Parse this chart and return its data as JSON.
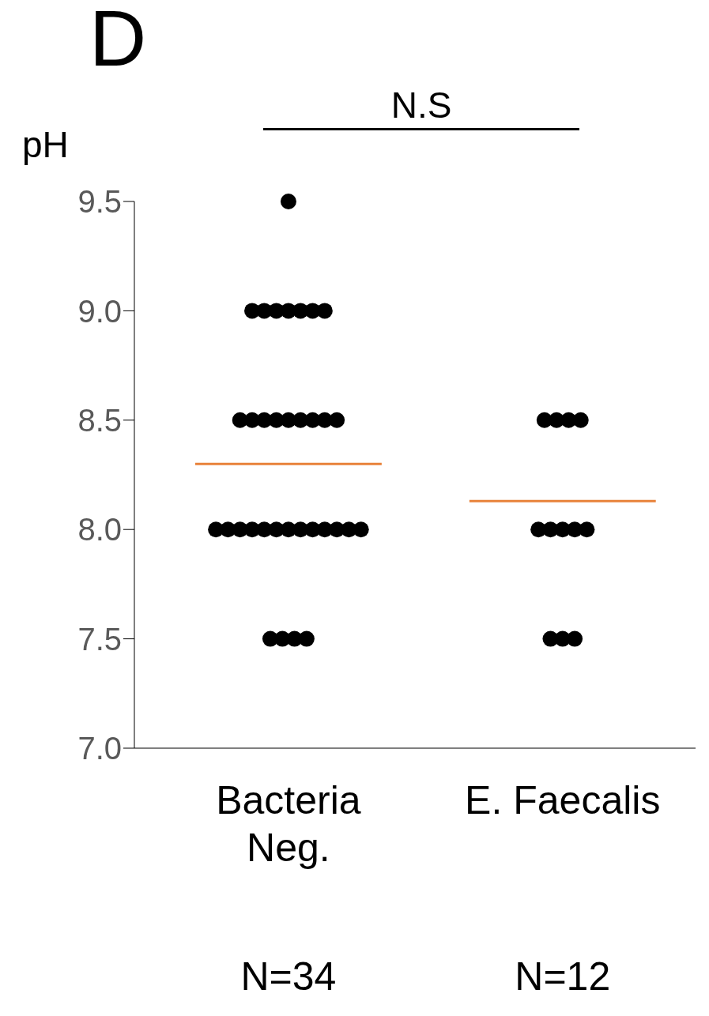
{
  "chart_data": {
    "type": "scatter",
    "title": "D",
    "ylabel": "pH",
    "categories": [
      "Bacteria Neg.",
      "E. Faecalis"
    ],
    "series": [
      {
        "type": "scatter",
        "color": "#000000",
        "marker": "circle",
        "x": [
          "Bacteria Neg.",
          "Bacteria Neg.",
          "Bacteria Neg.",
          "Bacteria Neg.",
          "Bacteria Neg.",
          "Bacteria Neg.",
          "Bacteria Neg.",
          "Bacteria Neg.",
          "Bacteria Neg.",
          "Bacteria Neg.",
          "Bacteria Neg.",
          "Bacteria Neg.",
          "Bacteria Neg.",
          "Bacteria Neg.",
          "Bacteria Neg.",
          "Bacteria Neg.",
          "Bacteria Neg.",
          "Bacteria Neg.",
          "Bacteria Neg.",
          "Bacteria Neg.",
          "Bacteria Neg.",
          "Bacteria Neg.",
          "Bacteria Neg.",
          "Bacteria Neg.",
          "Bacteria Neg.",
          "Bacteria Neg.",
          "Bacteria Neg.",
          "Bacteria Neg.",
          "Bacteria Neg.",
          "Bacteria Neg.",
          "Bacteria Neg.",
          "Bacteria Neg.",
          "Bacteria Neg.",
          "Bacteria Neg."
        ],
        "values": [
          9.5,
          9,
          9,
          9,
          9,
          9,
          9,
          9,
          8.5,
          8.5,
          8.5,
          8.5,
          8.5,
          8.5,
          8.5,
          8.5,
          8.5,
          8,
          8,
          8,
          8,
          8,
          8,
          8,
          8,
          8,
          8,
          8,
          8,
          8,
          7.5,
          7.5,
          7.5,
          7.5
        ]
      },
      {
        "type": "scatter",
        "color": "#000000",
        "marker": "circle",
        "x": [
          "E. Faecalis",
          "E. Faecalis",
          "E. Faecalis",
          "E. Faecalis",
          "E. Faecalis",
          "E. Faecalis",
          "E. Faecalis",
          "E. Faecalis",
          "E. Faecalis",
          "E. Faecalis",
          "E. Faecalis",
          "E. Faecalis"
        ],
        "values": [
          8.5,
          8.5,
          8.5,
          8.5,
          8,
          8,
          8,
          8,
          8,
          7.5,
          7.5,
          7.5
        ]
      }
    ],
    "ylim": [
      7,
      9.5
    ],
    "yticks": [
      {
        "value": 7,
        "label": "7.0"
      },
      {
        "value": 7.5,
        "label": "7.5"
      },
      {
        "value": 8,
        "label": "8.0"
      },
      {
        "value": 8.5,
        "label": "8.5"
      },
      {
        "value": 9,
        "label": "9.0"
      },
      {
        "value": 9.5,
        "label": "9.5"
      }
    ],
    "ref_lines": [
      {
        "axis": "y",
        "value": 8.3,
        "color": "#e8823a"
      },
      {
        "axis": "y",
        "value": 8.13,
        "color": "#e8823a"
      }
    ],
    "grid": false,
    "legend": false,
    "annotations": [
      "N.S",
      "N=34",
      "N=12"
    ]
  }
}
